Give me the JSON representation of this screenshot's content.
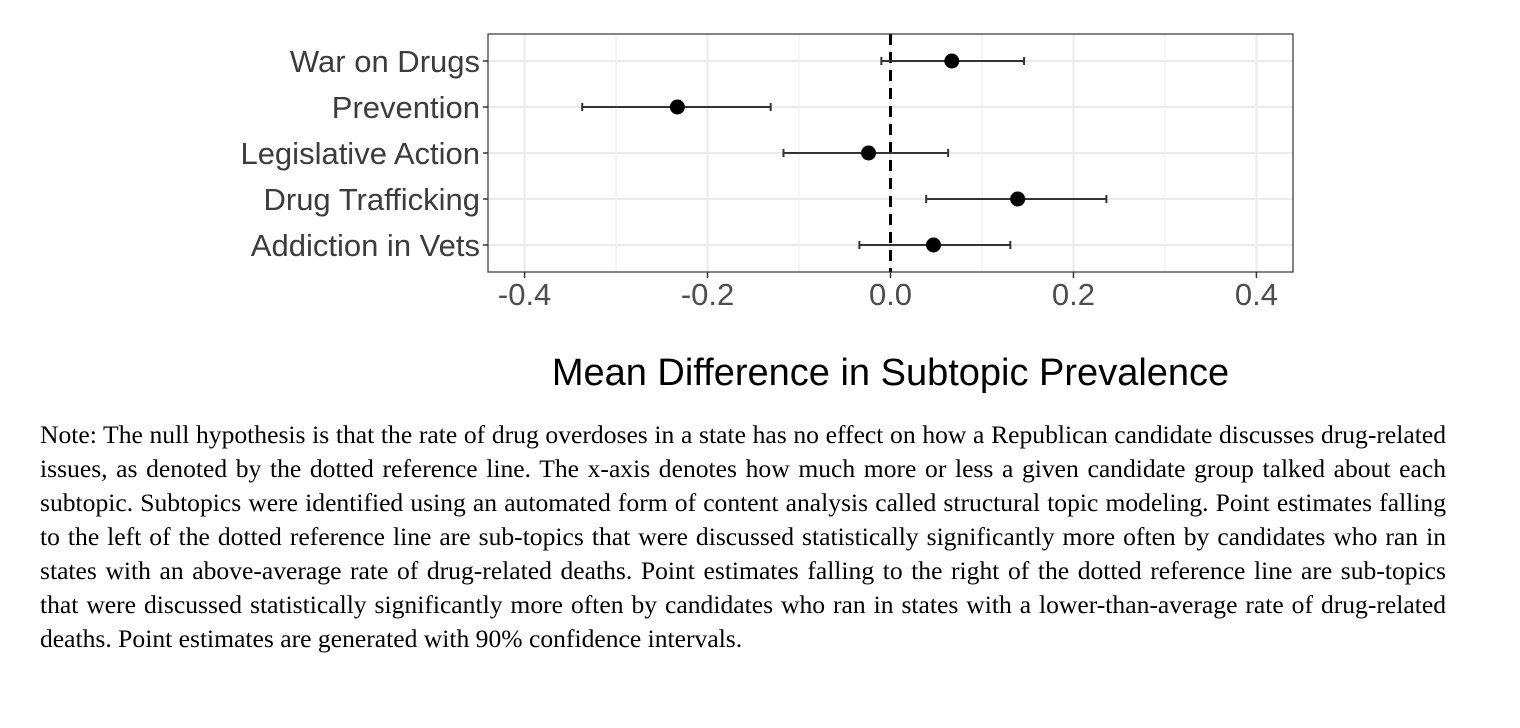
{
  "chart_data": {
    "type": "scatter",
    "orientation": "horizontal",
    "categories": [
      "War on Drugs",
      "Prevention",
      "Legislative Action",
      "Drug Trafficking",
      "Addiction in Vets"
    ],
    "estimates": [
      0.067,
      -0.233,
      -0.024,
      0.139,
      0.047
    ],
    "ci_low": [
      -0.01,
      -0.337,
      -0.117,
      0.039,
      -0.034
    ],
    "ci_high": [
      0.146,
      -0.131,
      0.063,
      0.236,
      0.131
    ],
    "xlim": [
      -0.44,
      0.44
    ],
    "xticks": [
      -0.4,
      -0.2,
      0.0,
      0.2,
      0.4
    ],
    "xtick_labels": [
      "-0.4",
      "-0.2",
      "0.0",
      "0.2",
      "0.4"
    ],
    "reference_line": 0,
    "xlabel": "Mean Difference in Subtopic Prevalence",
    "ylabel": "",
    "grid": true,
    "colors": {
      "point": "#000000",
      "grid": "#ebebeb",
      "panel_border": "#333333",
      "ref_line": "#000000"
    }
  },
  "note": "Note: The null hypothesis is that the rate of drug overdoses in a state has no effect on how a Republican candidate discusses drug-related issues, as denoted by the dotted reference line. The x-axis denotes how much more or less a given candidate group talked about each subtopic. Subtopics were identified using an automated form of content analysis called structural topic modeling. Point estimates falling to the left of the dotted reference line are sub-topics that were discussed statistically significantly more often by candidates who ran in states with an above-average rate of drug-related deaths. Point estimates falling to the right of the dotted reference line are sub-topics that were discussed statistically significantly more often by candidates who ran in states with a lower-than-average rate of drug-related deaths. Point estimates are generated with 90% confidence intervals."
}
